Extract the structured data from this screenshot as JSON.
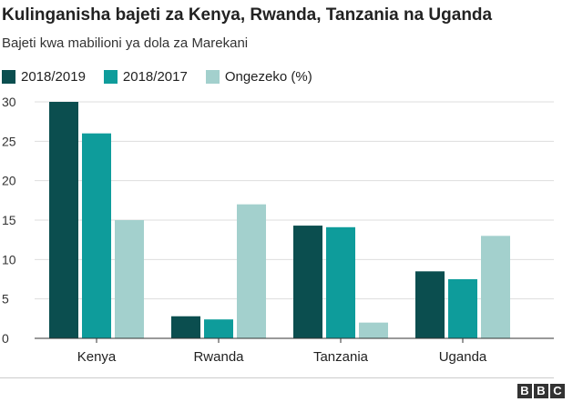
{
  "chart_data": {
    "type": "bar",
    "title": "Kulinganisha bajeti za Kenya, Rwanda, Tanzania na Uganda",
    "subtitle": "Bajeti kwa mabilioni ya dola za Marekani",
    "categories": [
      "Kenya",
      "Rwanda",
      "Tanzania",
      "Uganda"
    ],
    "series": [
      {
        "name": "2018/2019",
        "color": "#0b4e4f",
        "values": [
          30,
          2.8,
          14.3,
          8.5
        ]
      },
      {
        "name": "2018/2017",
        "color": "#0e9c9b",
        "values": [
          26,
          2.4,
          14.1,
          7.5
        ]
      },
      {
        "name": "Ongezeko (%)",
        "color": "#a3d0cd",
        "values": [
          15,
          17,
          2,
          13
        ]
      }
    ],
    "yticks": [
      "0",
      "5",
      "10",
      "15",
      "20",
      "25",
      "30"
    ],
    "ylim": [
      0,
      30
    ],
    "xlabel": "",
    "ylabel": "",
    "grid": true,
    "legend": "top-left"
  },
  "footer": {
    "logo": [
      "B",
      "B",
      "C"
    ]
  }
}
